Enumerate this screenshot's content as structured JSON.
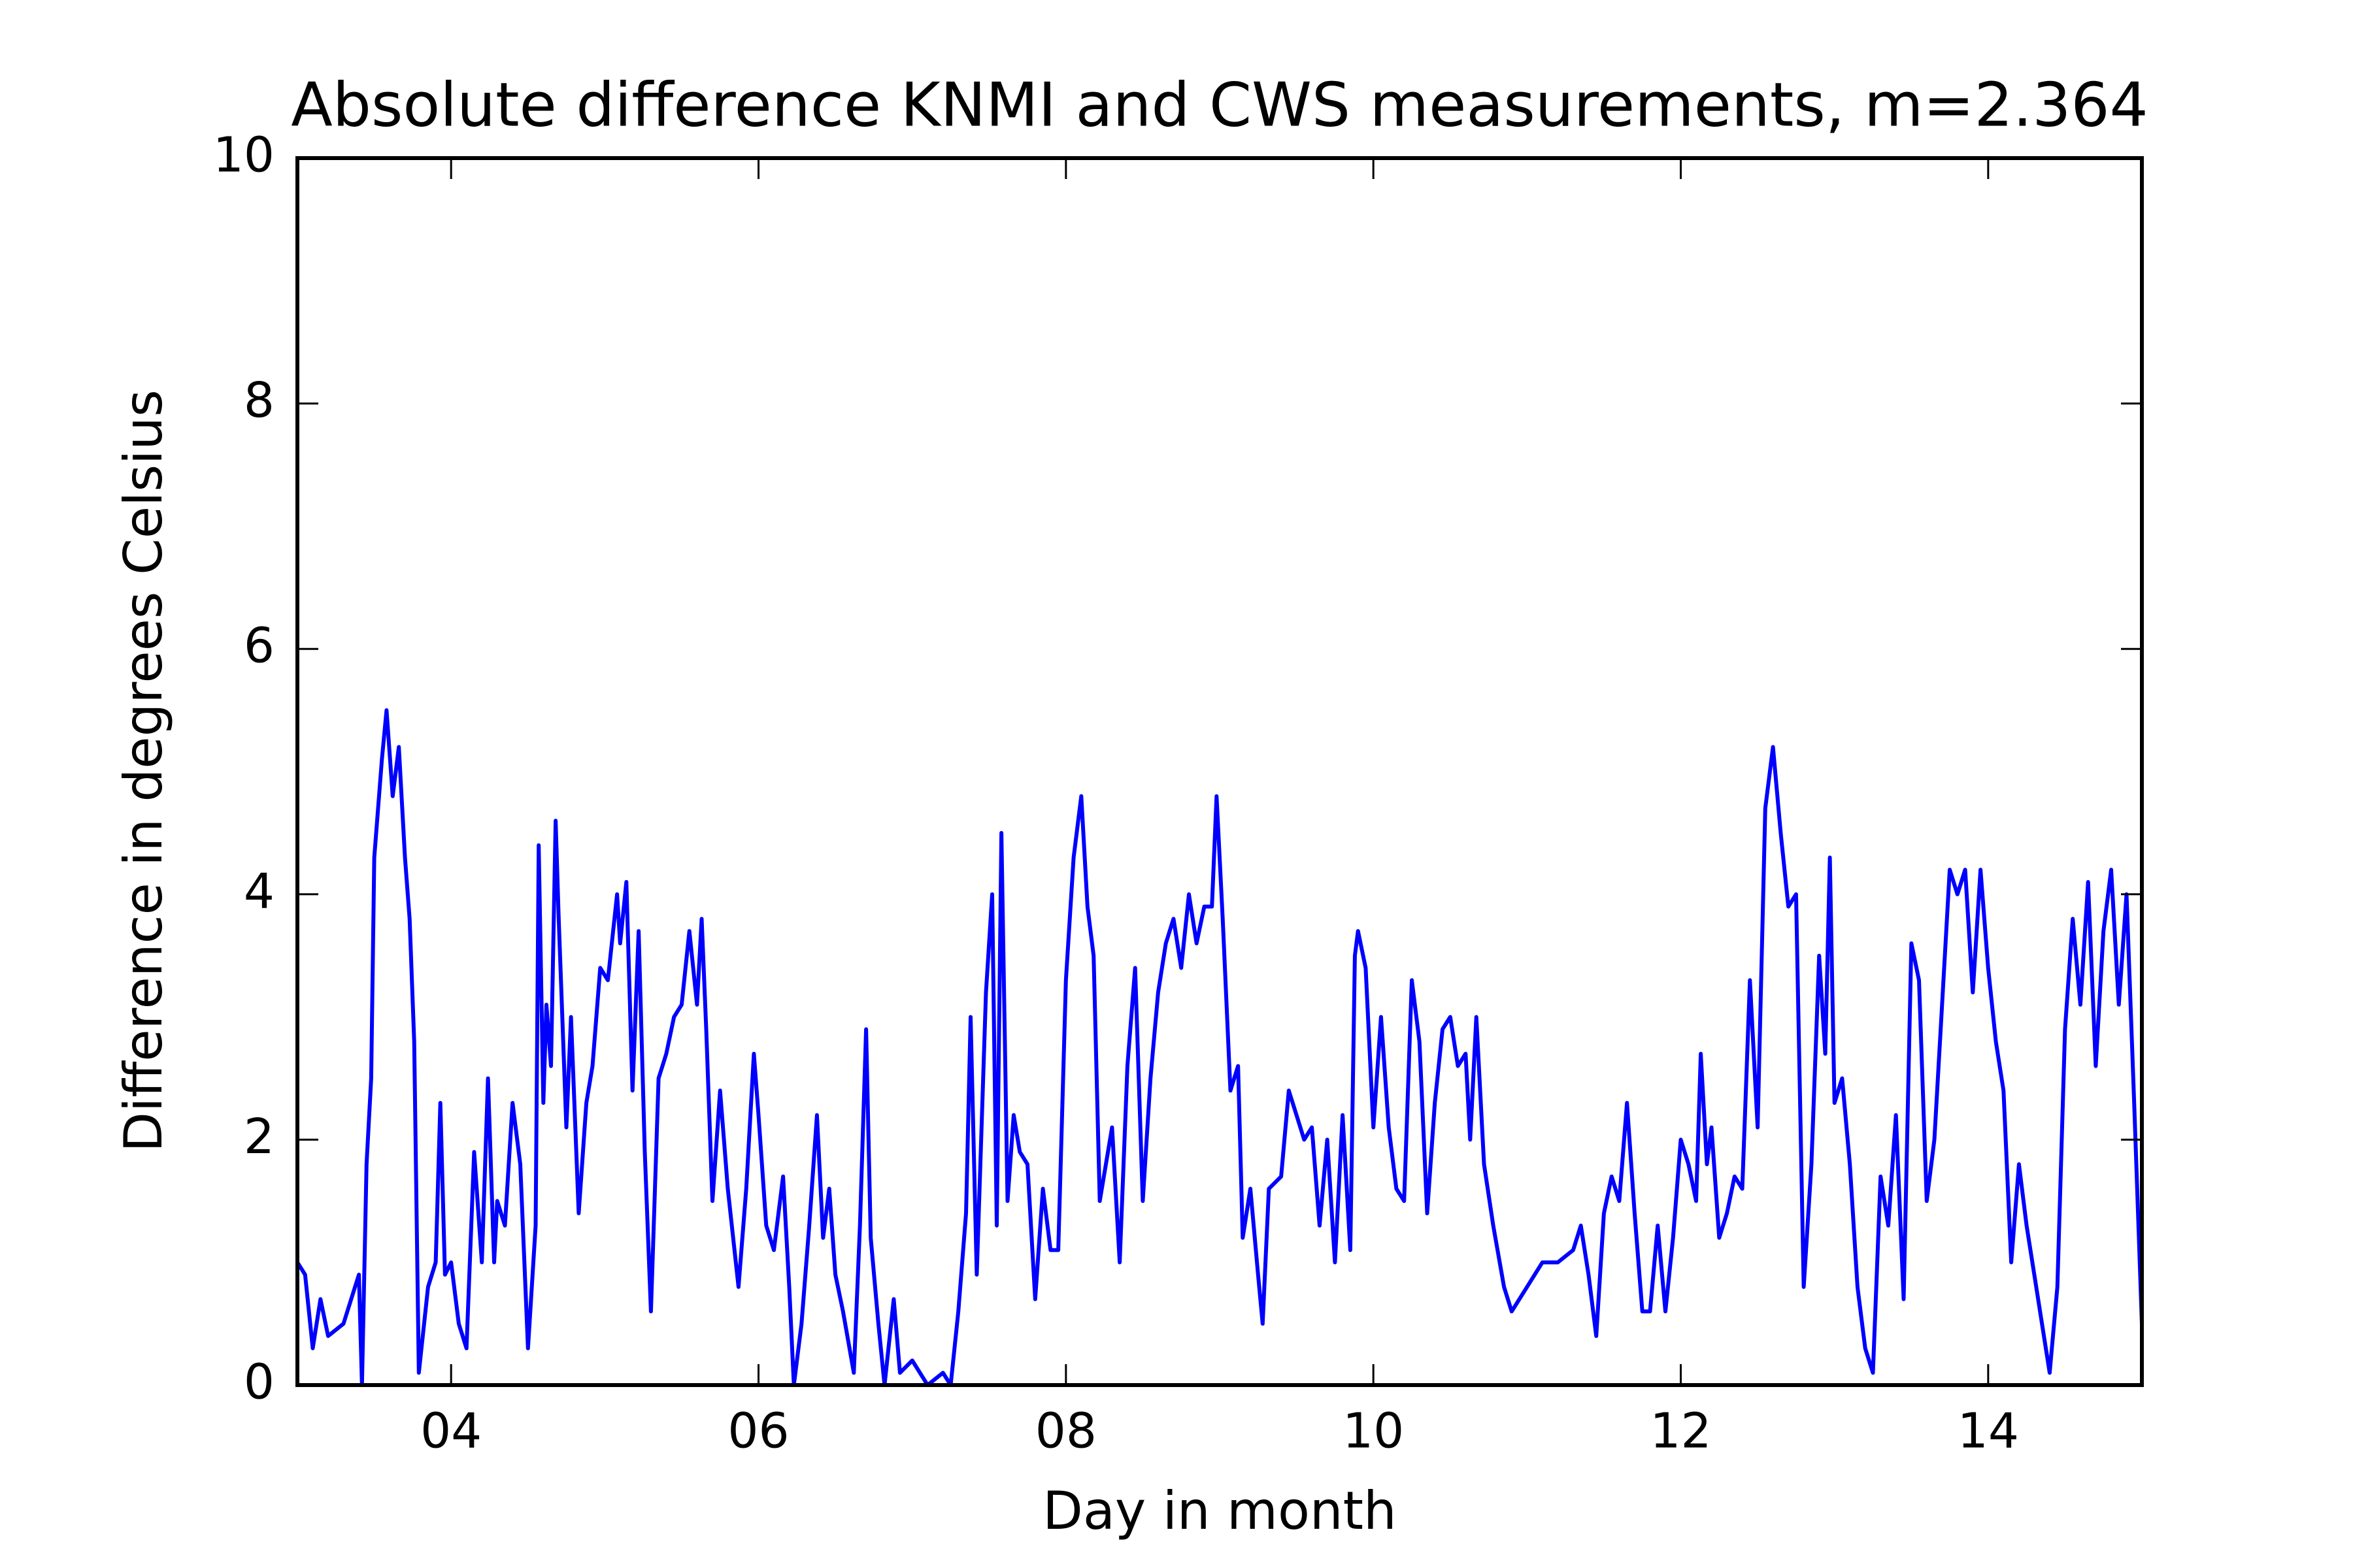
{
  "chart_data": {
    "type": "line",
    "title": "Absolute difference KNMI and CWS measurements, m=2.364",
    "x_label": "Day in month",
    "y_label": "Difference in degrees Celsius",
    "color": "#0000ff",
    "xlim": [
      3,
      15
    ],
    "xticks": [
      {
        "value": 4,
        "label": "04"
      },
      {
        "value": 6,
        "label": "06"
      },
      {
        "value": 8,
        "label": "08"
      },
      {
        "value": 10,
        "label": "10"
      },
      {
        "value": 12,
        "label": "12"
      },
      {
        "value": 14,
        "label": "14"
      }
    ],
    "ylim": [
      0,
      10
    ],
    "yticks": [
      0,
      2,
      4,
      6,
      8,
      10
    ],
    "x": [
      3.0,
      3.05,
      3.1,
      3.15,
      3.2,
      3.3,
      3.35,
      3.4,
      3.42,
      3.45,
      3.48,
      3.5,
      3.55,
      3.58,
      3.62,
      3.66,
      3.7,
      3.73,
      3.76,
      3.79,
      3.85,
      3.9,
      3.93,
      3.96,
      4.0,
      4.05,
      4.1,
      4.15,
      4.2,
      4.24,
      4.28,
      4.3,
      4.35,
      4.4,
      4.45,
      4.5,
      4.55,
      4.57,
      4.6,
      4.62,
      4.65,
      4.68,
      4.7,
      4.75,
      4.78,
      4.83,
      4.88,
      4.92,
      4.97,
      5.02,
      5.08,
      5.1,
      5.14,
      5.18,
      5.22,
      5.26,
      5.3,
      5.35,
      5.4,
      5.45,
      5.5,
      5.55,
      5.6,
      5.63,
      5.66,
      5.7,
      5.75,
      5.8,
      5.87,
      5.92,
      5.97,
      6.0,
      6.05,
      6.1,
      6.16,
      6.2,
      6.23,
      6.28,
      6.33,
      6.38,
      6.42,
      6.46,
      6.5,
      6.55,
      6.62,
      6.66,
      6.7,
      6.73,
      6.78,
      6.82,
      6.88,
      6.92,
      7.0,
      7.1,
      7.2,
      7.25,
      7.3,
      7.35,
      7.38,
      7.42,
      7.48,
      7.52,
      7.55,
      7.58,
      7.62,
      7.66,
      7.7,
      7.75,
      7.8,
      7.85,
      7.9,
      7.95,
      8.0,
      8.05,
      8.1,
      8.14,
      8.18,
      8.22,
      8.3,
      8.35,
      8.4,
      8.45,
      8.5,
      8.55,
      8.6,
      8.65,
      8.7,
      8.75,
      8.8,
      8.85,
      8.9,
      8.95,
      8.98,
      9.02,
      9.07,
      9.12,
      9.15,
      9.2,
      9.25,
      9.28,
      9.32,
      9.4,
      9.45,
      9.5,
      9.55,
      9.6,
      9.65,
      9.7,
      9.75,
      9.8,
      9.85,
      9.88,
      9.9,
      9.95,
      10.0,
      10.05,
      10.1,
      10.15,
      10.2,
      10.25,
      10.3,
      10.35,
      10.4,
      10.45,
      10.5,
      10.55,
      10.6,
      10.63,
      10.67,
      10.72,
      10.78,
      10.85,
      10.9,
      11.0,
      11.1,
      11.2,
      11.3,
      11.35,
      11.4,
      11.45,
      11.5,
      11.55,
      11.6,
      11.65,
      11.7,
      11.75,
      11.8,
      11.85,
      11.9,
      11.95,
      12.0,
      12.05,
      12.1,
      12.13,
      12.17,
      12.2,
      12.25,
      12.3,
      12.35,
      12.4,
      12.45,
      12.5,
      12.55,
      12.6,
      12.65,
      12.7,
      12.75,
      12.8,
      12.85,
      12.9,
      12.94,
      12.97,
      13.0,
      13.05,
      13.1,
      13.15,
      13.2,
      13.25,
      13.3,
      13.35,
      13.4,
      13.45,
      13.5,
      13.55,
      13.6,
      13.65,
      13.7,
      13.75,
      13.8,
      13.85,
      13.9,
      13.95,
      14.0,
      14.05,
      14.1,
      14.15,
      14.2,
      14.25,
      14.3,
      14.4,
      14.45,
      14.5,
      14.55,
      14.6,
      14.65,
      14.7,
      14.75,
      14.8,
      14.85,
      14.9,
      14.95,
      15.0
    ],
    "values": [
      1.0,
      0.9,
      0.3,
      0.7,
      0.4,
      0.5,
      0.7,
      0.9,
      0.0,
      1.8,
      2.5,
      4.3,
      5.1,
      5.5,
      4.8,
      5.2,
      4.3,
      3.8,
      2.8,
      0.1,
      0.8,
      1.0,
      2.3,
      0.9,
      1.0,
      0.5,
      0.3,
      1.9,
      1.0,
      2.5,
      1.0,
      1.5,
      1.3,
      2.3,
      1.8,
      0.3,
      1.3,
      4.4,
      2.3,
      3.1,
      2.6,
      4.6,
      3.8,
      2.1,
      3.0,
      1.4,
      2.3,
      2.6,
      3.4,
      3.3,
      4.0,
      3.6,
      4.1,
      2.4,
      3.7,
      1.9,
      0.6,
      2.5,
      2.7,
      3.0,
      3.1,
      3.7,
      3.1,
      3.8,
      2.9,
      1.5,
      2.4,
      1.6,
      0.8,
      1.6,
      2.7,
      2.2,
      1.3,
      1.1,
      1.7,
      0.8,
      0.0,
      0.5,
      1.3,
      2.2,
      1.2,
      1.6,
      0.9,
      0.6,
      0.1,
      1.3,
      2.9,
      1.2,
      0.5,
      0.0,
      0.7,
      0.1,
      0.2,
      0.0,
      0.1,
      0.0,
      0.6,
      1.4,
      3.0,
      0.9,
      3.2,
      4.0,
      1.3,
      4.5,
      1.5,
      2.2,
      1.9,
      1.8,
      0.7,
      1.6,
      1.1,
      1.1,
      3.3,
      4.3,
      4.8,
      3.9,
      3.5,
      1.5,
      2.1,
      1.0,
      2.6,
      3.4,
      1.5,
      2.5,
      3.2,
      3.6,
      3.8,
      3.4,
      4.0,
      3.6,
      3.9,
      3.9,
      4.8,
      3.8,
      2.4,
      2.6,
      1.2,
      1.6,
      0.9,
      0.5,
      1.6,
      1.7,
      2.4,
      2.2,
      2.0,
      2.1,
      1.3,
      2.0,
      1.0,
      2.2,
      1.1,
      3.5,
      3.7,
      3.4,
      2.1,
      3.0,
      2.1,
      1.6,
      1.5,
      3.3,
      2.8,
      1.4,
      2.3,
      2.9,
      3.0,
      2.6,
      2.7,
      2.0,
      3.0,
      1.8,
      1.3,
      0.8,
      0.6,
      0.8,
      1.0,
      1.0,
      1.1,
      1.3,
      0.9,
      0.4,
      1.4,
      1.7,
      1.5,
      2.3,
      1.4,
      0.6,
      0.6,
      1.3,
      0.6,
      1.2,
      2.0,
      1.8,
      1.5,
      2.7,
      1.8,
      2.1,
      1.2,
      1.4,
      1.7,
      1.6,
      3.3,
      2.1,
      4.7,
      5.2,
      4.5,
      3.9,
      4.0,
      0.8,
      1.8,
      3.5,
      2.7,
      4.3,
      2.3,
      2.5,
      1.8,
      0.8,
      0.3,
      0.1,
      1.7,
      1.3,
      2.2,
      0.7,
      3.6,
      3.3,
      1.5,
      2.0,
      3.1,
      4.2,
      4.0,
      4.2,
      3.2,
      4.2,
      3.4,
      2.8,
      2.4,
      1.0,
      1.8,
      1.3,
      0.9,
      0.1,
      0.8,
      2.9,
      3.8,
      3.1,
      4.1,
      2.6,
      3.7,
      4.2,
      3.1,
      4.0,
      2.3,
      0.5
    ]
  }
}
